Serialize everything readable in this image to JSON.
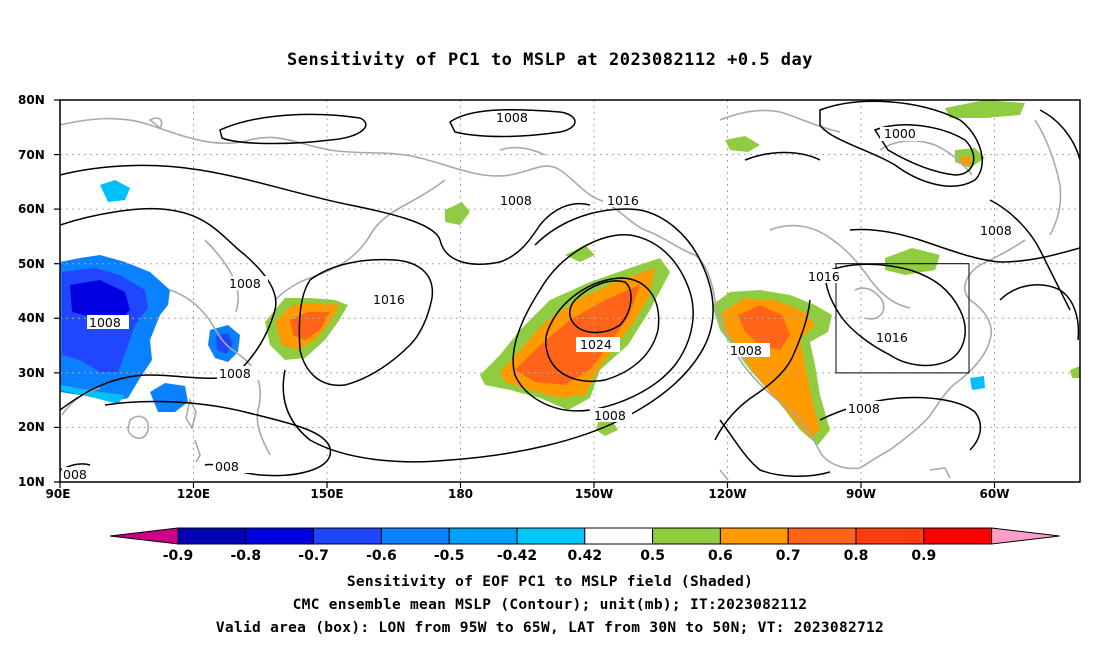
{
  "title": "Sensitivity of PC1 to MSLP at 2023082112 +0.5 day",
  "map": {
    "lat_labels": [
      "80N",
      "70N",
      "60N",
      "50N",
      "40N",
      "30N",
      "20N",
      "10N"
    ],
    "lon_labels": [
      "90E",
      "120E",
      "150E",
      "180",
      "150W",
      "120W",
      "90W",
      "60W"
    ],
    "contour_labels": [
      {
        "text": "1008"
      },
      {
        "text": "1000"
      },
      {
        "text": "1008"
      },
      {
        "text": "1016"
      },
      {
        "text": "1008"
      },
      {
        "text": "1016"
      },
      {
        "text": "1008"
      },
      {
        "text": "1008"
      },
      {
        "text": "1024"
      },
      {
        "text": "1008"
      },
      {
        "text": "1016"
      },
      {
        "text": "1008"
      },
      {
        "text": "1016"
      },
      {
        "text": "1008"
      },
      {
        "text": "1008"
      },
      {
        "text": "008"
      }
    ],
    "colors": {
      "green": "#90cc40",
      "orange": "#ff9a00",
      "dkorange": "#ff6418",
      "red": "#ff2000",
      "cyan": "#00bfff",
      "blue1": "#0a82ff",
      "blue2": "#2046ff",
      "blue3": "#0000e0",
      "coast": "#a9a9a9",
      "contour": "#000000"
    }
  },
  "colorbar": {
    "labels": [
      "-0.9",
      "-0.8",
      "-0.7",
      "-0.6",
      "-0.5",
      "-0.42",
      "0.42",
      "0.5",
      "0.6",
      "0.7",
      "0.8",
      "0.9"
    ],
    "colors": [
      "#0000b4",
      "#0000e0",
      "#2046ff",
      "#0a82ff",
      "#00a0ff",
      "#00c8ff",
      "#ffffff",
      "#90cc40",
      "#ff9a00",
      "#ff6418",
      "#ff3c10",
      "#ff0000"
    ],
    "low_color": "#cc0088",
    "high_color": "#ff9ec8"
  },
  "captions": {
    "line1": "Sensitivity of EOF PC1 to MSLP field (Shaded)",
    "line2": "CMC ensemble mean MSLP (Contour); unit(mb); IT:2023082112",
    "line3": "Valid area (box): LON from 95W to 65W, LAT from 30N to 50N; VT: 2023082712"
  }
}
